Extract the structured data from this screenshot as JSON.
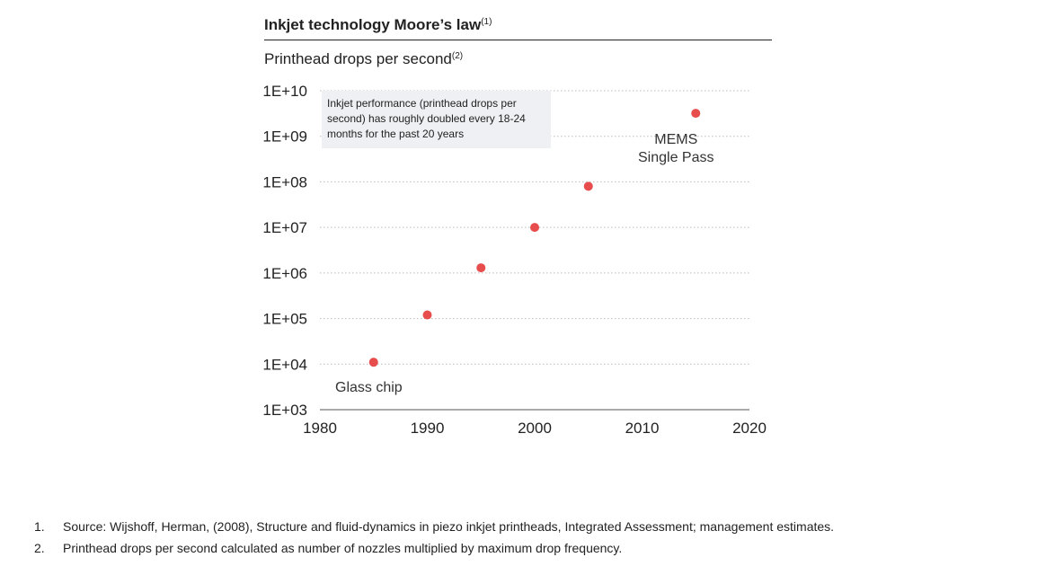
{
  "title": {
    "text": "Inkjet technology Moore’s law",
    "sup": "(1)"
  },
  "subtitle": {
    "text": "Printhead drops per second",
    "sup": "(2)"
  },
  "annotation": "Inkjet performance (printhead drops per second) has roughly doubled every 18-24 months for the past 20 years",
  "colors": {
    "point": "#e84d4d",
    "grid": "#bbbbbb",
    "text": "#222222",
    "note_bg": "#eef0f3"
  },
  "chart_data": {
    "type": "scatter",
    "x": [
      1985,
      1990,
      1995,
      2000,
      2005,
      2015
    ],
    "y": [
      11000,
      120000,
      1300000,
      10000000,
      80000000,
      3200000000
    ],
    "xlim": [
      1980,
      2020
    ],
    "ylim": [
      1000,
      10000000000
    ],
    "yscale": "log",
    "xticks": [
      "1980",
      "1990",
      "2000",
      "2010",
      "2020"
    ],
    "yticks": [
      "1E+10",
      "1E+09",
      "1E+08",
      "1E+07",
      "1E+06",
      "1E+05",
      "1E+04",
      "1E+03"
    ],
    "grid": "horizontal dotted",
    "point_labels": [
      {
        "text": "Glass chip"
      },
      {
        "text": "MEMS Single Pass"
      }
    ]
  },
  "point_labels": {
    "glass": "Glass chip",
    "mems_line1": "MEMS",
    "mems_line2": "Single Pass"
  },
  "footnotes": [
    {
      "num": "1.",
      "text": "Source: Wijshoff, Herman, (2008), Structure and fluid-dynamics in piezo inkjet printheads, Integrated Assessment; management estimates."
    },
    {
      "num": "2.",
      "text": "Printhead drops per second calculated as number of nozzles multiplied by maximum drop frequency."
    }
  ]
}
